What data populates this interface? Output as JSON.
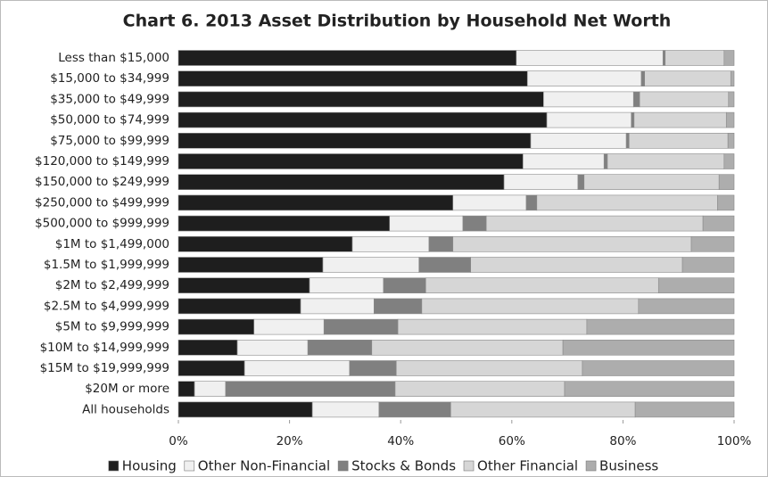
{
  "chart_data": {
    "type": "stacked-barh",
    "title": "Chart 6. 2013 Asset Distribution by Household Net Worth",
    "categories": [
      "Less than $15,000",
      "$15,000 to $34,999",
      "$35,000 to $49,999",
      "$50,000 to $74,999",
      "$75,000 to $99,999",
      "$120,000 to $149,999",
      "$150,000 to $249,999",
      "$250,000 to $499,999",
      "$500,000 to $999,999",
      "$1M to $1,499,000",
      "$1.5M to $1,999,999",
      "$2M to $2,499,999",
      "$2.5M to $4,999,999",
      "$5M to $9,999,999",
      "$10M to $14,999,999",
      "$15M to $19,999,999",
      "$20M or more",
      "All households"
    ],
    "series": [
      {
        "name": "Housing",
        "color": "#1e1e1e",
        "values": [
          60.8,
          62.8,
          65.7,
          66.3,
          63.4,
          62,
          58.6,
          49.4,
          38,
          31.3,
          26,
          23.6,
          22,
          13.6,
          10.6,
          11.9,
          2.9,
          24.1
        ]
      },
      {
        "name": "Other Non-Financial",
        "color": "#f0f0f0",
        "values": [
          26.4,
          20.5,
          16.2,
          15.2,
          17.2,
          14.6,
          13.3,
          13.2,
          13.2,
          13.8,
          17.3,
          13.3,
          13.2,
          12.6,
          12.7,
          18.9,
          5.6,
          12
        ]
      },
      {
        "name": "Stocks & Bonds",
        "color": "#808080",
        "values": [
          0.4,
          0.6,
          1.1,
          0.5,
          0.5,
          0.6,
          1.1,
          1.9,
          4.2,
          4.3,
          9.3,
          7.6,
          8.6,
          13.3,
          11.5,
          8.4,
          30.5,
          12.9
        ]
      },
      {
        "name": "Other Financial",
        "color": "#d6d6d6",
        "values": [
          10.6,
          15.5,
          16,
          16.6,
          17.8,
          21,
          24.3,
          32.5,
          39,
          42.9,
          38.1,
          41.9,
          39,
          34,
          34.4,
          33.5,
          30.5,
          33.2
        ]
      },
      {
        "name": "Business",
        "color": "#adadad",
        "values": [
          1.8,
          0.6,
          1.0,
          1.4,
          1.1,
          1.8,
          2.7,
          3.0,
          5.6,
          7.7,
          9.3,
          13.6,
          17.2,
          26.5,
          30.8,
          27.3,
          30.5,
          17.8
        ]
      }
    ],
    "xlim": [
      0,
      100
    ],
    "xticks": [
      {
        "value": 0,
        "label": "0%"
      },
      {
        "value": 20,
        "label": "20%"
      },
      {
        "value": 40,
        "label": "40%"
      },
      {
        "value": 60,
        "label": "60%"
      },
      {
        "value": 80,
        "label": "80%"
      },
      {
        "value": 100,
        "label": "100%"
      }
    ],
    "legend": "bottom"
  }
}
